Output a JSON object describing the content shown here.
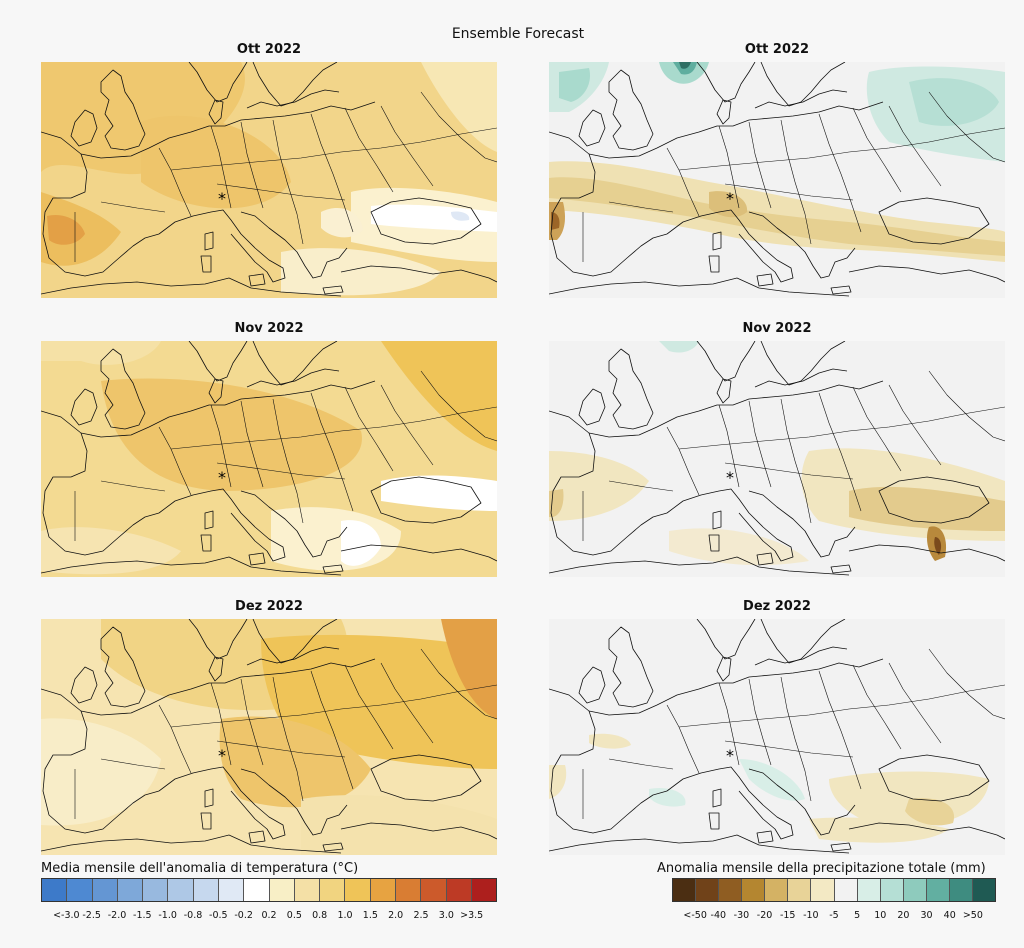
{
  "title": "Ensemble Forecast",
  "panels": {
    "temp": [
      {
        "month": "Ott 2022"
      },
      {
        "month": "Nov 2022"
      },
      {
        "month": "Dez 2022"
      }
    ],
    "precip": [
      {
        "month": "Ott 2022"
      },
      {
        "month": "Nov 2022"
      },
      {
        "month": "Dez 2022"
      }
    ]
  },
  "legend_temp": {
    "title": "Media mensile dell'anomalia di temperatura (°C)",
    "labels": [
      "<-3.0",
      "-2.5",
      "-2.0",
      "-1.5",
      "-1.0",
      "-0.8",
      "-0.5",
      "-0.2",
      "0.2",
      "0.5",
      "0.8",
      "1.0",
      "1.5",
      "2.0",
      "2.5",
      "3.0",
      ">3.5"
    ],
    "colors": [
      "#3d7ac9",
      "#4e89d2",
      "#6496d3",
      "#7ea8d9",
      "#98b9df",
      "#aec8e6",
      "#c6d8ee",
      "#e0e9f5",
      "#ffffff",
      "#f8efc6",
      "#f4e0a6",
      "#f1d480",
      "#efc458",
      "#e7a341",
      "#d97d33",
      "#cc5a2b",
      "#bd3a25",
      "#ad1f1d"
    ]
  },
  "legend_precip": {
    "title": "Anomalia mensile della precipitazione totale (mm)",
    "labels": [
      "<-50",
      "-40",
      "-30",
      "-20",
      "-15",
      "-10",
      "-5",
      "5",
      "10",
      "20",
      "30",
      "40",
      ">50"
    ],
    "colors": [
      "#4b2e12",
      "#704219",
      "#8f5d22",
      "#b48630",
      "#d4b264",
      "#e8d398",
      "#f3e9c4",
      "#f2f2f2",
      "#d8eee7",
      "#b5dfd5",
      "#8ecbbd",
      "#62afa1",
      "#3e8c80",
      "#1f5a53"
    ]
  },
  "marker": "*"
}
